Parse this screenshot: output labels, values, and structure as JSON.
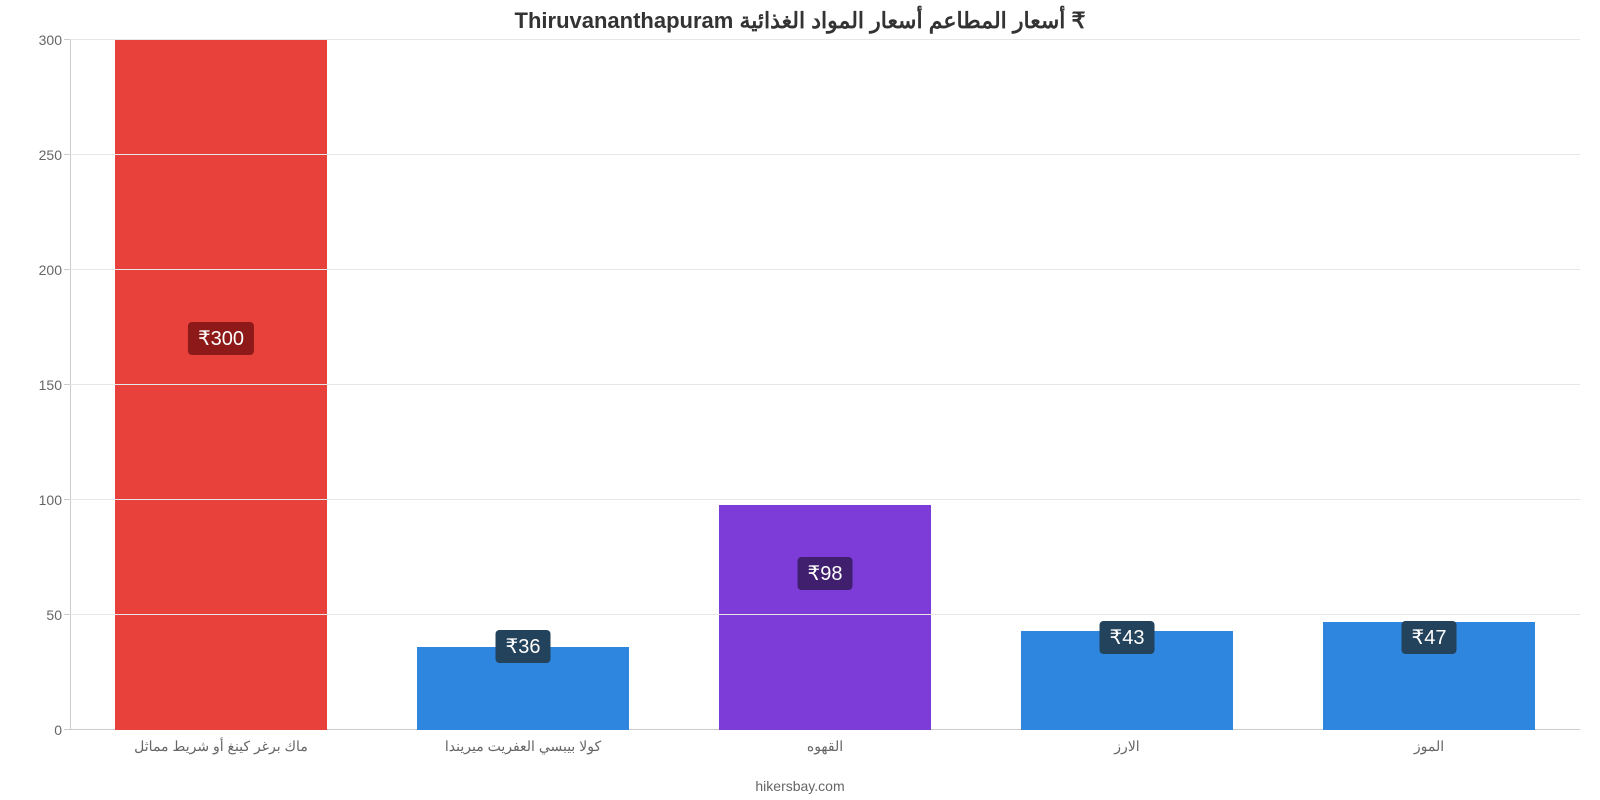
{
  "chart": {
    "type": "bar",
    "title": "Thiruvananthapuram أسعار المطاعم أسعار المواد الغذائية ₹",
    "title_fontsize": 22,
    "title_color": "#333333",
    "footer": "hikersbay.com",
    "footer_fontsize": 14,
    "footer_color": "#666666",
    "background_color": "#ffffff",
    "categories": [
      "ماك برغر كينغ أو شريط مماثل",
      "كولا بيبسي العفريت ميريندا",
      "القهوه",
      "الارز",
      "الموز"
    ],
    "values": [
      300,
      36,
      98,
      43,
      47
    ],
    "value_labels": [
      "₹300",
      "₹36",
      "₹98",
      "₹43",
      "₹47"
    ],
    "bar_colors": [
      "#e8403a",
      "#2e86de",
      "#7d3cd8",
      "#2e86de",
      "#2e86de"
    ],
    "label_bg_colors": [
      "#8d1a18",
      "#23425b",
      "#3f1f6e",
      "#23425b",
      "#23425b"
    ],
    "label_text_color": "#ffffff",
    "label_fontsize": 20,
    "category_label_fontsize": 14,
    "category_label_color": "#666666",
    "ylim": [
      0,
      300
    ],
    "yticks": [
      0,
      50,
      100,
      150,
      200,
      250,
      300
    ],
    "ytick_fontsize": 14,
    "ytick_color": "#666666",
    "grid": true,
    "grid_color": "#e6e6e6",
    "axis_color": "#cccccc",
    "bar_width": 0.7
  }
}
